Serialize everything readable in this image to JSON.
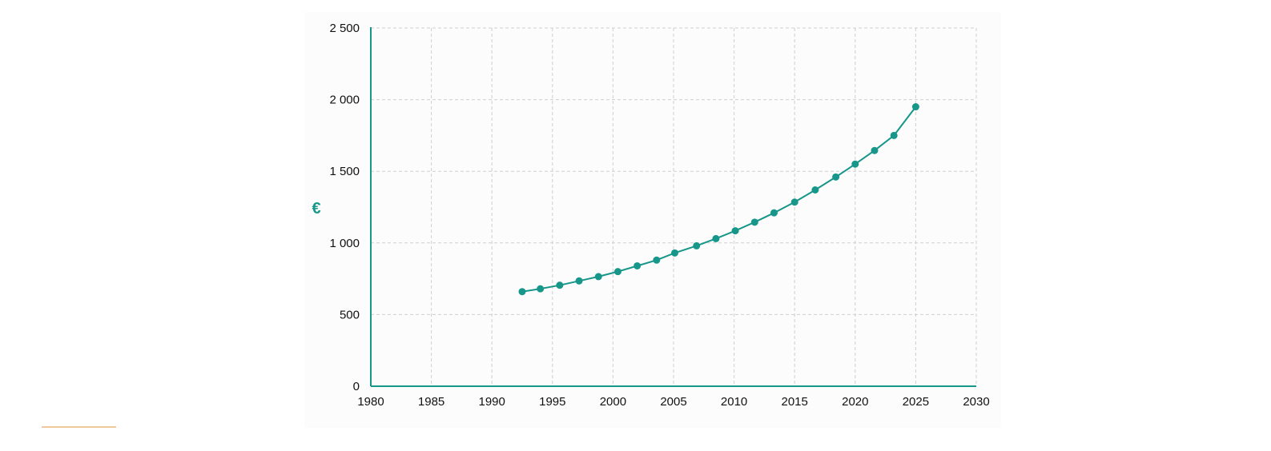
{
  "chart_data": {
    "type": "line",
    "title": "",
    "xlabel": "",
    "ylabel": "€",
    "xlim": [
      1980,
      2030
    ],
    "ylim": [
      0,
      2500
    ],
    "x_ticks": [
      1980,
      1985,
      1990,
      1995,
      2000,
      2005,
      2010,
      2015,
      2020,
      2025,
      2030
    ],
    "y_ticks": [
      0,
      500,
      1000,
      1500,
      2000,
      2500
    ],
    "x_tick_labels": [
      "1980",
      "1985",
      "1990",
      "1995",
      "2000",
      "2005",
      "2010",
      "2015",
      "2020",
      "2025",
      "2030"
    ],
    "y_tick_labels": [
      "0",
      "500",
      "1 000",
      "1 500",
      "2 000",
      "2 500"
    ],
    "grid": true,
    "series": [
      {
        "color": "#17968a",
        "x": [
          1992.5,
          1994.0,
          1995.6,
          1997.2,
          1998.8,
          2000.4,
          2002.0,
          2003.6,
          2005.1,
          2006.9,
          2008.5,
          2010.1,
          2011.7,
          2013.3,
          2015.0,
          2016.7,
          2018.4,
          2020.0,
          2021.6,
          2023.2,
          2025.0
        ],
        "y": [
          660,
          680,
          705,
          735,
          765,
          800,
          840,
          880,
          930,
          980,
          1030,
          1085,
          1145,
          1210,
          1285,
          1370,
          1460,
          1550,
          1645,
          1750,
          1950
        ]
      }
    ]
  },
  "colors": {
    "accent": "#17968a",
    "grid": "#cfcfcf",
    "decoration": "#f1c89c"
  }
}
